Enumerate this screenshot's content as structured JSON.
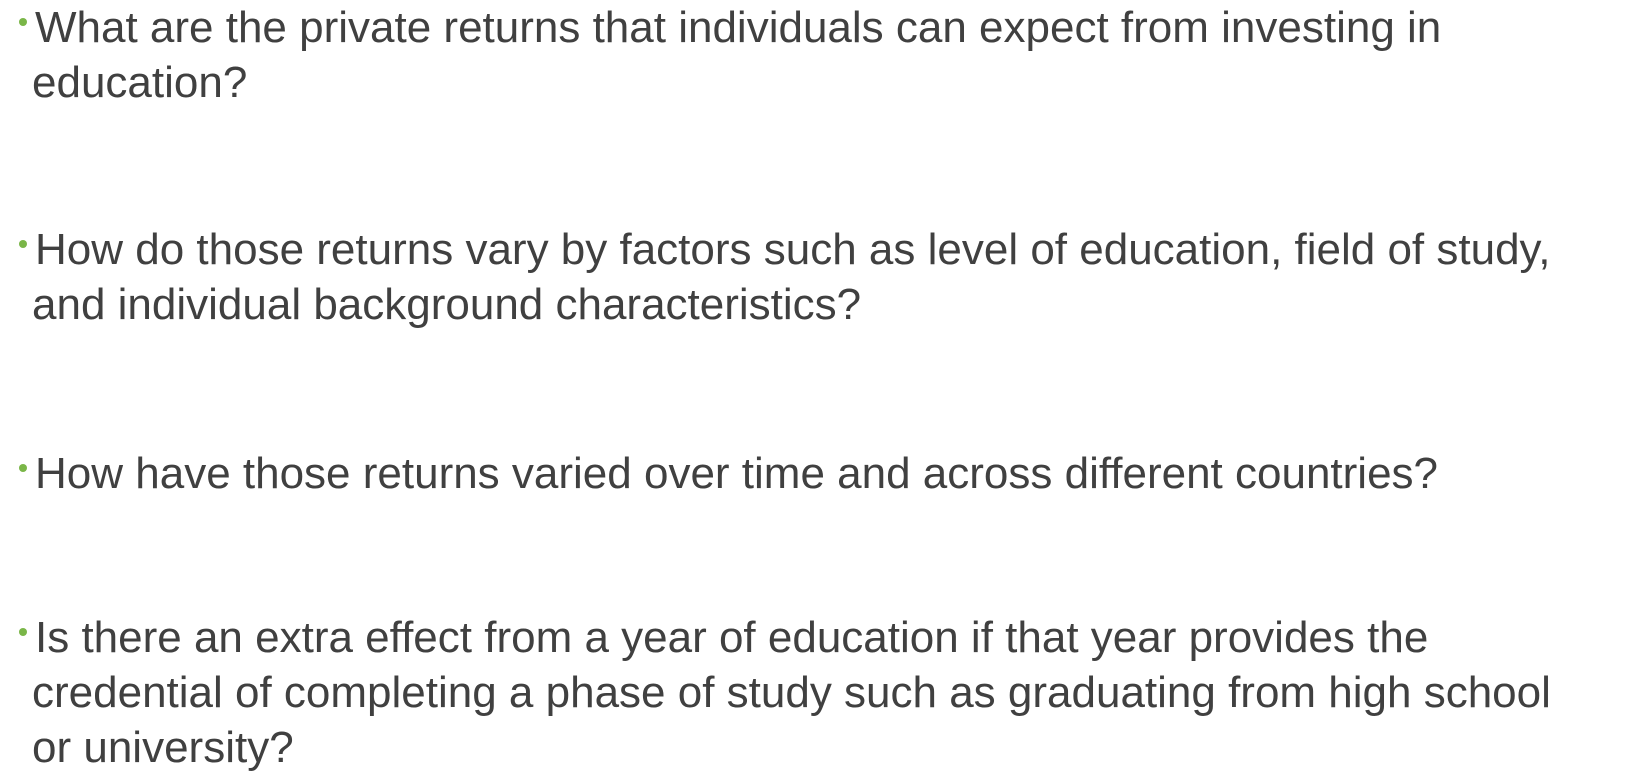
{
  "items": [
    {
      "lines": [
        "What are the private returns that individuals can expect from investing in",
        "education?"
      ]
    },
    {
      "lines": [
        "How do those returns vary by factors such as level of education, field of study,",
        "and individual background characteristics?"
      ]
    },
    {
      "lines": [
        "How have those returns varied over time and across different countries?"
      ]
    },
    {
      "lines": [
        "Is there an extra effect from a year of education if that year provides the",
        "credential of completing a phase of study such as  graduating from high school",
        "or university?"
      ]
    }
  ]
}
